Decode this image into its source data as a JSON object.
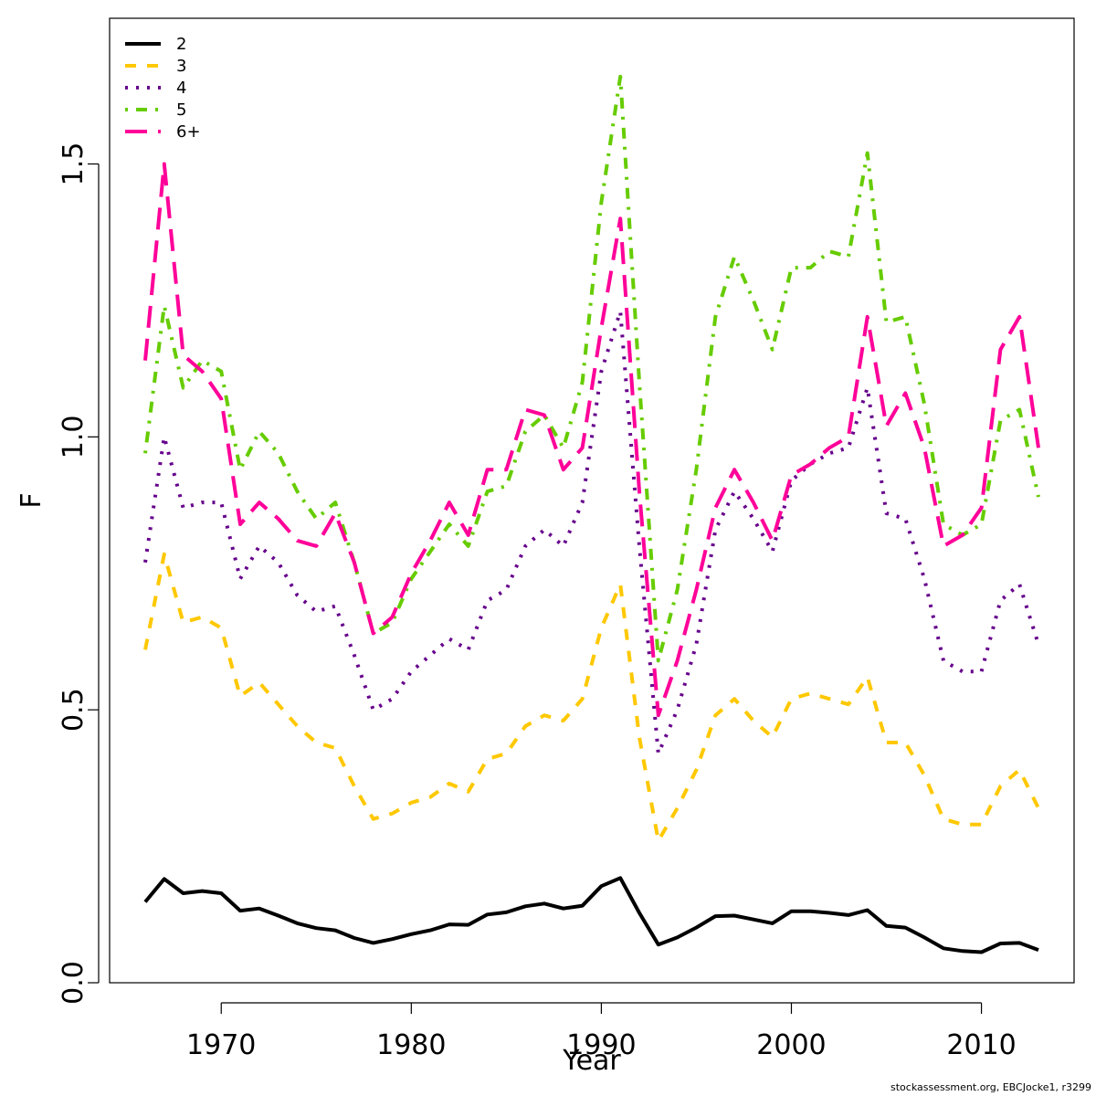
{
  "chart_data": {
    "type": "line",
    "xlabel": "Year",
    "ylabel": "F",
    "xlim": [
      1965,
      2015
    ],
    "ylim": [
      0.0,
      1.7
    ],
    "x_ticks": [
      1970,
      1980,
      1990,
      2000,
      2010
    ],
    "y_ticks": [
      0.0,
      0.5,
      1.0,
      1.5
    ],
    "y_tick_labels": [
      "0.0",
      "0.5",
      "1.0",
      "1.5"
    ],
    "grid": false,
    "legend_position": "top-left",
    "x": [
      1966,
      1967,
      1968,
      1969,
      1970,
      1971,
      1972,
      1973,
      1974,
      1975,
      1976,
      1977,
      1978,
      1979,
      1980,
      1981,
      1982,
      1983,
      1984,
      1985,
      1986,
      1987,
      1988,
      1989,
      1990,
      1991,
      1992,
      1993,
      1994,
      1995,
      1996,
      1997,
      1998,
      1999,
      2000,
      2001,
      2002,
      2003,
      2004,
      2005,
      2006,
      2007,
      2008,
      2009,
      2010,
      2011,
      2012,
      2013
    ],
    "series": [
      {
        "name": "2",
        "color": "#000000",
        "dash": "solid",
        "values": [
          0.148,
          0.19,
          0.164,
          0.168,
          0.164,
          0.132,
          0.136,
          0.123,
          0.109,
          0.1,
          0.096,
          0.082,
          0.073,
          0.08,
          0.089,
          0.096,
          0.107,
          0.106,
          0.125,
          0.129,
          0.14,
          0.145,
          0.136,
          0.141,
          0.177,
          0.192,
          0.128,
          0.07,
          0.083,
          0.101,
          0.122,
          0.123,
          0.116,
          0.109,
          0.131,
          0.131,
          0.128,
          0.124,
          0.133,
          0.104,
          0.101,
          0.083,
          0.063,
          0.058,
          0.056,
          0.072,
          0.073,
          0.06
        ]
      },
      {
        "name": "3",
        "color": "#FFC800",
        "dash": "dashed",
        "values": [
          0.61,
          0.785,
          0.66,
          0.67,
          0.65,
          0.525,
          0.55,
          0.51,
          0.47,
          0.44,
          0.43,
          0.36,
          0.3,
          0.31,
          0.33,
          0.34,
          0.365,
          0.35,
          0.41,
          0.42,
          0.47,
          0.49,
          0.48,
          0.52,
          0.65,
          0.73,
          0.45,
          0.26,
          0.32,
          0.39,
          0.49,
          0.52,
          0.48,
          0.45,
          0.52,
          0.53,
          0.52,
          0.51,
          0.56,
          0.44,
          0.44,
          0.38,
          0.3,
          0.29,
          0.29,
          0.36,
          0.39,
          0.32
        ]
      },
      {
        "name": "4",
        "color": "#66008C",
        "dash": "dotted",
        "values": [
          0.77,
          1.0,
          0.87,
          0.88,
          0.88,
          0.74,
          0.8,
          0.77,
          0.71,
          0.68,
          0.69,
          0.6,
          0.5,
          0.52,
          0.57,
          0.6,
          0.63,
          0.61,
          0.7,
          0.72,
          0.8,
          0.83,
          0.8,
          0.88,
          1.12,
          1.23,
          0.8,
          0.42,
          0.5,
          0.62,
          0.83,
          0.9,
          0.85,
          0.79,
          0.92,
          0.95,
          0.97,
          0.98,
          1.09,
          0.86,
          0.85,
          0.74,
          0.59,
          0.57,
          0.57,
          0.7,
          0.73,
          0.62
        ]
      },
      {
        "name": "5",
        "color": "#66CC00",
        "dash": "dotdash",
        "values": [
          0.97,
          1.24,
          1.09,
          1.14,
          1.12,
          0.94,
          1.01,
          0.97,
          0.9,
          0.85,
          0.88,
          0.77,
          0.64,
          0.66,
          0.74,
          0.79,
          0.84,
          0.8,
          0.9,
          0.91,
          1.01,
          1.04,
          0.98,
          1.1,
          1.43,
          1.66,
          1.1,
          0.59,
          0.72,
          0.94,
          1.22,
          1.33,
          1.25,
          1.16,
          1.31,
          1.31,
          1.34,
          1.33,
          1.52,
          1.21,
          1.22,
          1.06,
          0.84,
          0.82,
          0.84,
          1.03,
          1.05,
          0.89
        ]
      },
      {
        "name": "6+",
        "color": "#FF0099",
        "dash": "longdash",
        "values": [
          1.14,
          1.5,
          1.15,
          1.12,
          1.07,
          0.84,
          0.88,
          0.85,
          0.81,
          0.8,
          0.86,
          0.77,
          0.64,
          0.67,
          0.75,
          0.81,
          0.88,
          0.82,
          0.94,
          0.94,
          1.05,
          1.04,
          0.94,
          0.98,
          1.2,
          1.4,
          0.9,
          0.49,
          0.59,
          0.72,
          0.87,
          0.94,
          0.88,
          0.81,
          0.93,
          0.95,
          0.98,
          1.0,
          1.22,
          1.02,
          1.08,
          0.98,
          0.8,
          0.82,
          0.87,
          1.16,
          1.22,
          0.98
        ]
      }
    ]
  },
  "footer_text": "stockassessment.org, EBCJocke1, r3299"
}
